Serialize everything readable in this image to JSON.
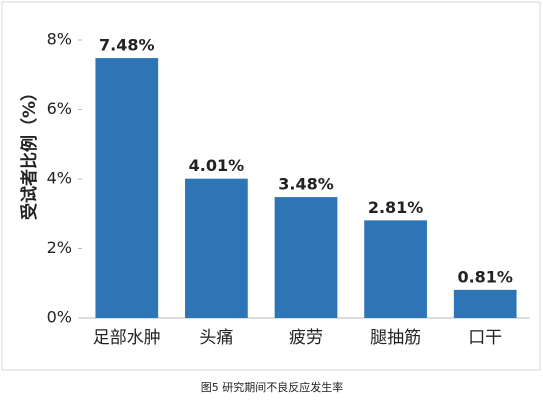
{
  "chart_data": {
    "type": "bar",
    "caption": "图5 研究期间不良反应发生率",
    "ylabel": "受试者比例（%）",
    "categories": [
      "足部水肿",
      "头痛",
      "疲劳",
      "腿抽筋",
      "口干"
    ],
    "values": [
      7.48,
      4.01,
      3.48,
      2.81,
      0.81
    ],
    "value_labels": [
      "7.48%",
      "4.01%",
      "3.48%",
      "2.81%",
      "0.81%"
    ],
    "color": "#2e75b6",
    "ylim": [
      0,
      8
    ],
    "yticks": [
      {
        "value": 0,
        "label": "0%"
      },
      {
        "value": 2,
        "label": "2%"
      },
      {
        "value": 4,
        "label": "4%"
      },
      {
        "value": 6,
        "label": "6%"
      },
      {
        "value": 8,
        "label": "8%"
      }
    ]
  }
}
